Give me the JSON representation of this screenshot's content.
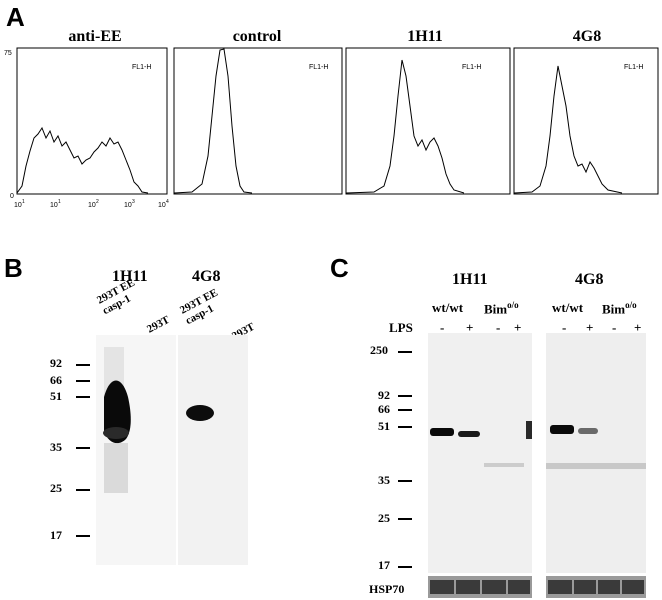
{
  "panel_labels": {
    "a": "A",
    "b": "B",
    "c": "C"
  },
  "panel_a": {
    "y_top_label": "75",
    "y_zero_label": "0",
    "channel": "FL1-H",
    "x_ticks": [
      "10",
      "1",
      "10",
      "2",
      "10",
      "3",
      "10",
      "4"
    ],
    "histograms": [
      {
        "title": "anti-EE"
      },
      {
        "title": "control"
      },
      {
        "title": "1H11"
      },
      {
        "title": "4G8"
      }
    ]
  },
  "panel_b": {
    "groups": [
      "1H11",
      "4G8"
    ],
    "lanes": [
      "293T EE casp-1",
      "293T",
      "293T EE casp-1",
      "293T"
    ],
    "mw_markers": [
      "92",
      "66",
      "51",
      "35",
      "25",
      "17"
    ]
  },
  "panel_c": {
    "groups": [
      "1H11",
      "4G8"
    ],
    "genotypes": [
      "wt/wt",
      "Bim",
      "o/o",
      "wt/wt",
      "Bim",
      "o/o"
    ],
    "lps_label": "LPS",
    "lps_signs": [
      "-",
      "+",
      "-",
      "+",
      "-",
      "+",
      "-",
      "+"
    ],
    "mw_markers": [
      "250",
      "92",
      "66",
      "51",
      "35",
      "25",
      "17"
    ],
    "loading_label": "HSP70"
  }
}
